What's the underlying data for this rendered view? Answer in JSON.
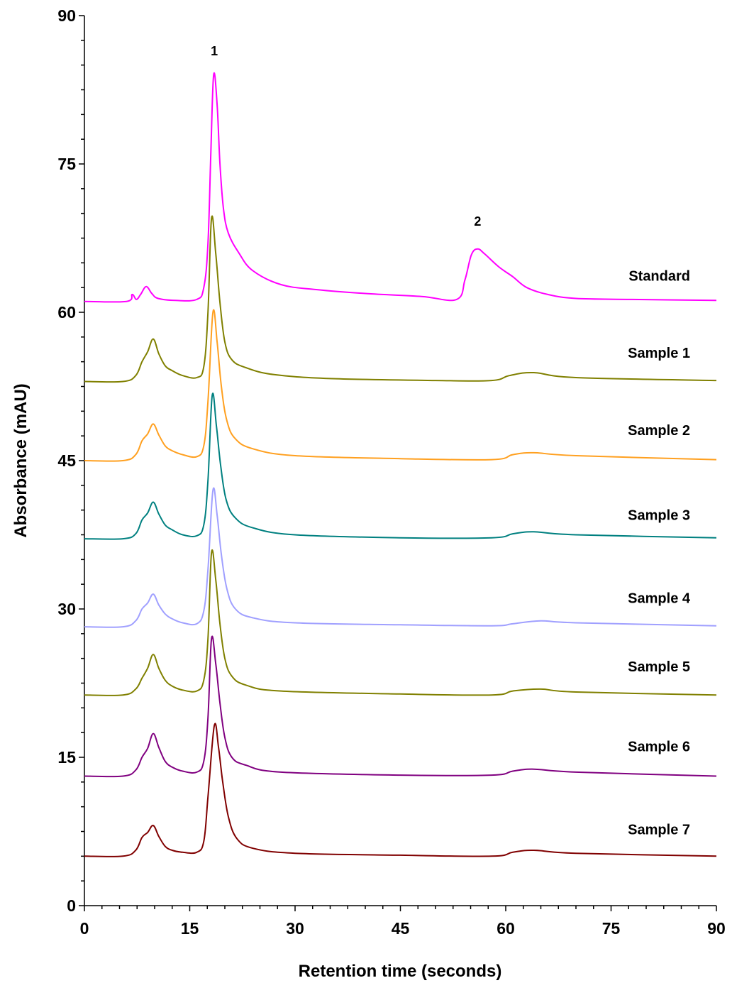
{
  "chart_data": {
    "type": "line",
    "title": "",
    "xlabel": "Retention time (seconds)",
    "ylabel": "Absorbance (mAU)",
    "xlim": [
      0,
      90
    ],
    "ylim": [
      0,
      90
    ],
    "x_major_ticks": [
      0,
      15,
      30,
      45,
      60,
      75,
      90
    ],
    "x_tick_labels": [
      "0",
      "15",
      "30",
      "45",
      "60",
      "75",
      "90"
    ],
    "y_major_ticks": [
      0,
      15,
      30,
      45,
      60,
      75,
      90
    ],
    "y_tick_labels": [
      "0",
      "15",
      "30",
      "45",
      "60",
      "75",
      "90"
    ],
    "grid": false,
    "legend": "none (series labeled directly at right)",
    "peak_annotations": [
      {
        "text": "1",
        "x": 18.5
      },
      {
        "text": "2",
        "x": 56
      }
    ],
    "series": [
      {
        "name": "Standard",
        "color": "#ff00ff",
        "baseline": 61.1,
        "label_y": 63.2,
        "points": [
          [
            0,
            61.1
          ],
          [
            6,
            61.1
          ],
          [
            6.8,
            61.8
          ],
          [
            7.4,
            61.3
          ],
          [
            8.0,
            61.8
          ],
          [
            8.8,
            62.6
          ],
          [
            9.6,
            61.9
          ],
          [
            10.5,
            61.4
          ],
          [
            13,
            61.2
          ],
          [
            16,
            61.3
          ],
          [
            17,
            62.5
          ],
          [
            17.6,
            67
          ],
          [
            18,
            76
          ],
          [
            18.4,
            84.0
          ],
          [
            18.9,
            81
          ],
          [
            19.3,
            75
          ],
          [
            19.8,
            70.5
          ],
          [
            20.5,
            68
          ],
          [
            22,
            66
          ],
          [
            24,
            64.2
          ],
          [
            28,
            62.8
          ],
          [
            33,
            62.3
          ],
          [
            40,
            61.9
          ],
          [
            48,
            61.6
          ],
          [
            53,
            61.3
          ],
          [
            54.2,
            63.3
          ],
          [
            55.1,
            65.8
          ],
          [
            56,
            66.4
          ],
          [
            57,
            65.9
          ],
          [
            59,
            64.6
          ],
          [
            61,
            63.6
          ],
          [
            63,
            62.5
          ],
          [
            66,
            61.8
          ],
          [
            70,
            61.4
          ],
          [
            78,
            61.3
          ],
          [
            90,
            61.2
          ]
        ]
      },
      {
        "name": "Sample 1",
        "color": "#808000",
        "baseline": 53.0,
        "label_y": 55.4,
        "points": [
          [
            0,
            53.0
          ],
          [
            5.5,
            53.0
          ],
          [
            7.3,
            53.6
          ],
          [
            8.2,
            55.0
          ],
          [
            9.0,
            56.0
          ],
          [
            9.8,
            57.3
          ],
          [
            10.6,
            55.8
          ],
          [
            11.5,
            54.6
          ],
          [
            12.5,
            54.1
          ],
          [
            14,
            53.6
          ],
          [
            16,
            53.4
          ],
          [
            17,
            54.5
          ],
          [
            17.6,
            60
          ],
          [
            18.1,
            69.5
          ],
          [
            18.7,
            66
          ],
          [
            19.3,
            61
          ],
          [
            20,
            57
          ],
          [
            21,
            55.2
          ],
          [
            23,
            54.4
          ],
          [
            27,
            53.7
          ],
          [
            35,
            53.3
          ],
          [
            50,
            53.1
          ],
          [
            58,
            53.1
          ],
          [
            60.5,
            53.6
          ],
          [
            64,
            53.9
          ],
          [
            70,
            53.4
          ],
          [
            90,
            53.1
          ]
        ]
      },
      {
        "name": "Sample 2",
        "color": "#ffa020",
        "baseline": 45.0,
        "label_y": 47.6,
        "points": [
          [
            0,
            45.0
          ],
          [
            5.5,
            45.0
          ],
          [
            7.3,
            45.6
          ],
          [
            8.2,
            47.0
          ],
          [
            9.0,
            47.7
          ],
          [
            9.8,
            48.7
          ],
          [
            10.6,
            47.6
          ],
          [
            11.5,
            46.5
          ],
          [
            12.5,
            46.0
          ],
          [
            14,
            45.6
          ],
          [
            16,
            45.4
          ],
          [
            17,
            46.5
          ],
          [
            17.6,
            51
          ],
          [
            18.3,
            60.0
          ],
          [
            18.9,
            57
          ],
          [
            19.5,
            52.5
          ],
          [
            20.3,
            49
          ],
          [
            21.5,
            47.2
          ],
          [
            24,
            46.2
          ],
          [
            30,
            45.5
          ],
          [
            45,
            45.2
          ],
          [
            58,
            45.1
          ],
          [
            61,
            45.6
          ],
          [
            64,
            45.8
          ],
          [
            70,
            45.5
          ],
          [
            90,
            45.1
          ]
        ]
      },
      {
        "name": "Sample 3",
        "color": "#008080",
        "baseline": 37.1,
        "label_y": 39.0,
        "points": [
          [
            0,
            37.1
          ],
          [
            5.5,
            37.1
          ],
          [
            7.3,
            37.6
          ],
          [
            8.2,
            39.0
          ],
          [
            9.0,
            39.7
          ],
          [
            9.8,
            40.8
          ],
          [
            10.6,
            39.6
          ],
          [
            11.5,
            38.5
          ],
          [
            12.5,
            38.0
          ],
          [
            14,
            37.5
          ],
          [
            16,
            37.4
          ],
          [
            17,
            38.5
          ],
          [
            17.6,
            43
          ],
          [
            18.2,
            51.6
          ],
          [
            18.8,
            48.5
          ],
          [
            19.4,
            44.5
          ],
          [
            20.2,
            41
          ],
          [
            21.5,
            39.2
          ],
          [
            24,
            38.2
          ],
          [
            30,
            37.5
          ],
          [
            45,
            37.2
          ],
          [
            58,
            37.2
          ],
          [
            61,
            37.6
          ],
          [
            64,
            37.8
          ],
          [
            70,
            37.5
          ],
          [
            90,
            37.2
          ]
        ]
      },
      {
        "name": "Sample 4",
        "color": "#a0a0ff",
        "baseline": 28.2,
        "label_y": 30.6,
        "points": [
          [
            0,
            28.2
          ],
          [
            5.5,
            28.2
          ],
          [
            7.3,
            28.8
          ],
          [
            8.2,
            30.0
          ],
          [
            9.0,
            30.6
          ],
          [
            9.8,
            31.5
          ],
          [
            10.6,
            30.4
          ],
          [
            11.5,
            29.5
          ],
          [
            12.5,
            29.0
          ],
          [
            14,
            28.6
          ],
          [
            16,
            28.5
          ],
          [
            17,
            29.8
          ],
          [
            17.6,
            34
          ],
          [
            18.3,
            42.0
          ],
          [
            18.9,
            39.5
          ],
          [
            19.5,
            35.5
          ],
          [
            20.3,
            32
          ],
          [
            21.5,
            30.0
          ],
          [
            24,
            29.1
          ],
          [
            30,
            28.6
          ],
          [
            45,
            28.4
          ],
          [
            58,
            28.3
          ],
          [
            61,
            28.5
          ],
          [
            65,
            28.8
          ],
          [
            70,
            28.6
          ],
          [
            90,
            28.3
          ]
        ]
      },
      {
        "name": "Sample 5",
        "color": "#808000",
        "baseline": 21.3,
        "label_y": 23.7,
        "points": [
          [
            0,
            21.3
          ],
          [
            5.5,
            21.3
          ],
          [
            7.3,
            21.9
          ],
          [
            8.2,
            23.0
          ],
          [
            9.0,
            24.0
          ],
          [
            9.8,
            25.4
          ],
          [
            10.6,
            24.0
          ],
          [
            11.5,
            22.8
          ],
          [
            12.5,
            22.2
          ],
          [
            14,
            21.8
          ],
          [
            16,
            21.7
          ],
          [
            17,
            22.8
          ],
          [
            17.6,
            27
          ],
          [
            18.1,
            35.7
          ],
          [
            18.7,
            33
          ],
          [
            19.3,
            28.5
          ],
          [
            20,
            25
          ],
          [
            21,
            23.2
          ],
          [
            23,
            22.3
          ],
          [
            28,
            21.7
          ],
          [
            45,
            21.4
          ],
          [
            58,
            21.3
          ],
          [
            61,
            21.7
          ],
          [
            65,
            21.9
          ],
          [
            70,
            21.6
          ],
          [
            90,
            21.3
          ]
        ]
      },
      {
        "name": "Sample 6",
        "color": "#800080",
        "baseline": 13.1,
        "label_y": 15.6,
        "points": [
          [
            0,
            13.1
          ],
          [
            5.5,
            13.1
          ],
          [
            7.3,
            13.7
          ],
          [
            8.2,
            15.0
          ],
          [
            9.0,
            15.9
          ],
          [
            9.8,
            17.4
          ],
          [
            10.6,
            16.0
          ],
          [
            11.5,
            14.6
          ],
          [
            12.5,
            14.0
          ],
          [
            14,
            13.6
          ],
          [
            16,
            13.5
          ],
          [
            17,
            14.6
          ],
          [
            17.6,
            19
          ],
          [
            18.1,
            27.0
          ],
          [
            18.7,
            24.5
          ],
          [
            19.3,
            20.5
          ],
          [
            20,
            17
          ],
          [
            21,
            15.0
          ],
          [
            23,
            14.2
          ],
          [
            28,
            13.5
          ],
          [
            45,
            13.2
          ],
          [
            58,
            13.2
          ],
          [
            61,
            13.6
          ],
          [
            64,
            13.8
          ],
          [
            70,
            13.5
          ],
          [
            90,
            13.1
          ]
        ]
      },
      {
        "name": "Sample 7",
        "color": "#800000",
        "baseline": 5.0,
        "label_y": 7.2,
        "points": [
          [
            0,
            5.0
          ],
          [
            5.5,
            5.0
          ],
          [
            7.3,
            5.6
          ],
          [
            8.2,
            6.9
          ],
          [
            9.0,
            7.4
          ],
          [
            9.8,
            8.1
          ],
          [
            10.6,
            7.0
          ],
          [
            11.5,
            6.0
          ],
          [
            12.5,
            5.6
          ],
          [
            14,
            5.4
          ],
          [
            16,
            5.4
          ],
          [
            17,
            6.5
          ],
          [
            17.6,
            11
          ],
          [
            18.5,
            18.2
          ],
          [
            19.1,
            16
          ],
          [
            19.7,
            12.5
          ],
          [
            20.5,
            9
          ],
          [
            21.7,
            6.8
          ],
          [
            24,
            5.8
          ],
          [
            30,
            5.3
          ],
          [
            45,
            5.1
          ],
          [
            58,
            5.0
          ],
          [
            61,
            5.4
          ],
          [
            64,
            5.6
          ],
          [
            70,
            5.3
          ],
          [
            90,
            5.0
          ]
        ]
      }
    ]
  }
}
